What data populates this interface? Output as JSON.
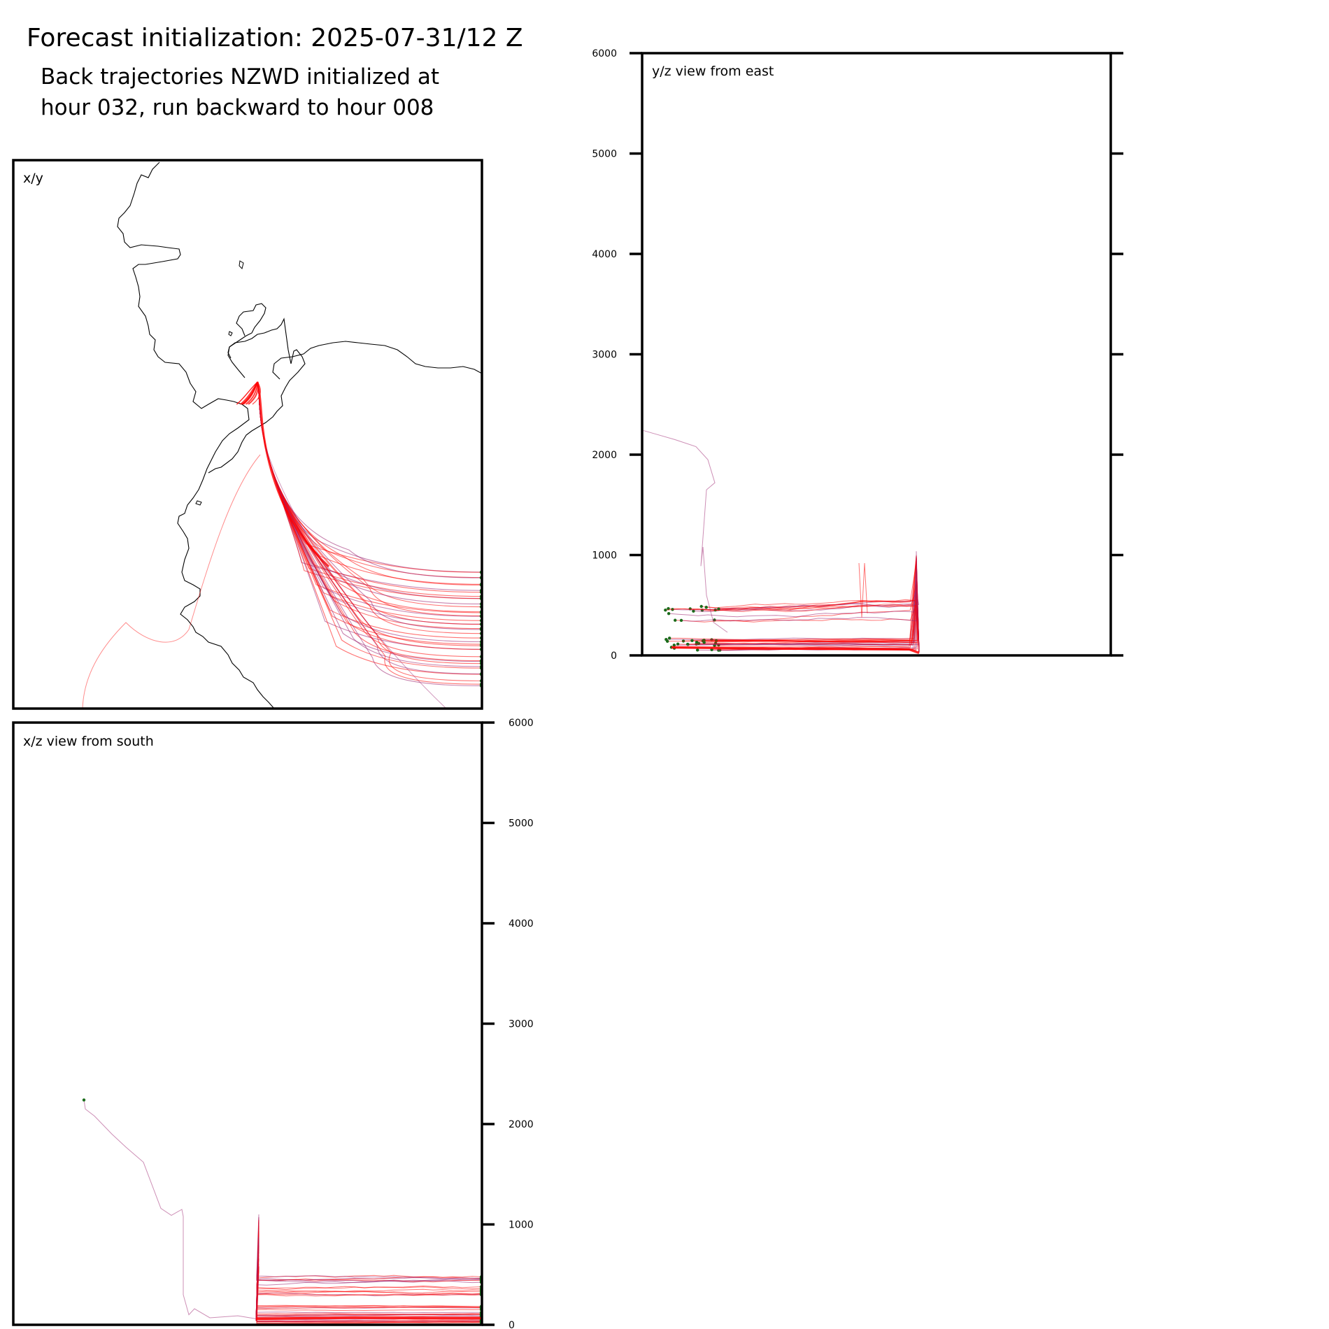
{
  "title": "Forecast initialization: 2025-07-31/12 Z",
  "subtitle_line1": "Back trajectories NZWD initialized at",
  "subtitle_line2": "hour 032, run backward to hour 008",
  "colors": {
    "trajectory_early": "#ff0000",
    "trajectory_late": "#9b1f6e",
    "endpoint_marker": "#1a6b1a",
    "coastline": "#000000",
    "frame": "#000000"
  },
  "chart_data": [
    {
      "type": "line",
      "panel": "x/y",
      "title": "x/y",
      "description_source": "map view with coastline",
      "xlabel": "",
      "ylabel": "",
      "grid": false,
      "trajectory_count": 40
    },
    {
      "type": "line",
      "panel": "y/z",
      "title": "y/z view from east",
      "xlabel": "",
      "ylabel": "",
      "ylim": [
        0,
        6000
      ],
      "yticks": [
        0,
        1000,
        2000,
        3000,
        4000,
        5000,
        6000
      ],
      "ytick_labels": [
        "0",
        "1000",
        "2000",
        "3000",
        "4000",
        "5000",
        "6000"
      ],
      "grid": false,
      "trajectory_count": 40
    },
    {
      "type": "line",
      "panel": "x/z",
      "title": "x/z view from south",
      "xlabel": "",
      "ylabel": "",
      "ylim": [
        0,
        6000
      ],
      "yticks": [
        0,
        1000,
        2000,
        3000,
        4000,
        5000,
        6000
      ],
      "ytick_labels": [
        "0",
        "1000",
        "2000",
        "3000",
        "4000",
        "5000",
        "6000"
      ],
      "grid": false,
      "trajectory_count": 40
    }
  ]
}
